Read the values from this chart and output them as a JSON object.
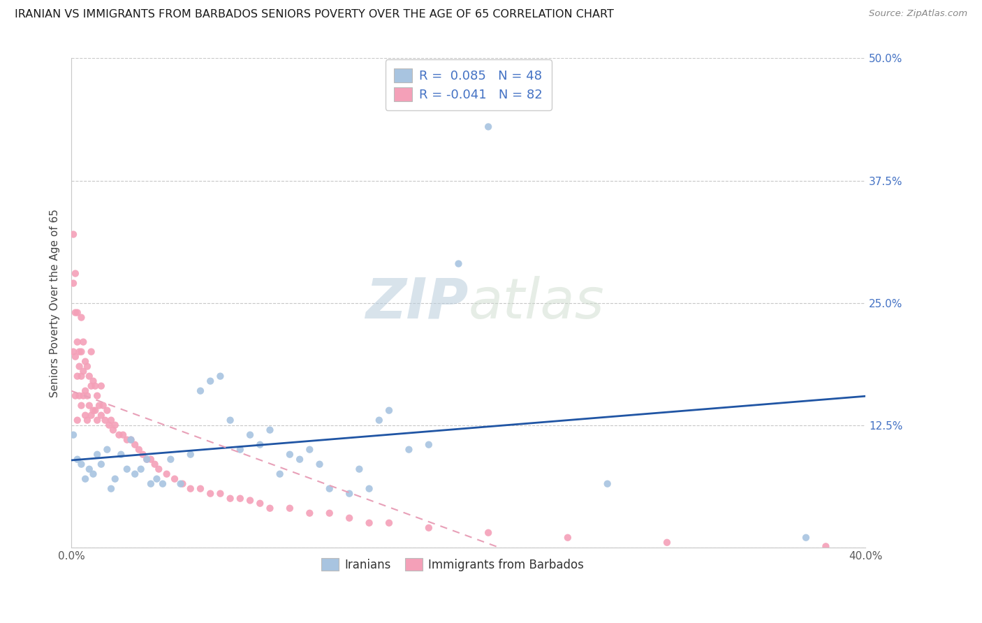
{
  "title": "IRANIAN VS IMMIGRANTS FROM BARBADOS SENIORS POVERTY OVER THE AGE OF 65 CORRELATION CHART",
  "source": "Source: ZipAtlas.com",
  "ylabel": "Seniors Poverty Over the Age of 65",
  "xlim": [
    0.0,
    0.4
  ],
  "ylim": [
    0.0,
    0.5
  ],
  "xticks": [
    0.0,
    0.1,
    0.2,
    0.3,
    0.4
  ],
  "xticklabels": [
    "0.0%",
    "",
    "",
    "",
    "40.0%"
  ],
  "yticks": [
    0.0,
    0.125,
    0.25,
    0.375,
    0.5
  ],
  "right_yticklabels": [
    "",
    "12.5%",
    "25.0%",
    "37.5%",
    "50.0%"
  ],
  "right_ytick_color": "#4472c4",
  "grid_color": "#c8c8c8",
  "background_color": "#ffffff",
  "watermark_zip": "ZIP",
  "watermark_atlas": "atlas",
  "legend_R1": "0.085",
  "legend_N1": "48",
  "legend_R2": "-0.041",
  "legend_N2": "82",
  "iranians_color": "#a8c4e0",
  "barbados_color": "#f4a0b8",
  "line1_color": "#2055a4",
  "line2_color": "#e8a0b8",
  "iranians_x": [
    0.001,
    0.003,
    0.005,
    0.007,
    0.009,
    0.011,
    0.013,
    0.015,
    0.018,
    0.02,
    0.022,
    0.025,
    0.028,
    0.03,
    0.032,
    0.035,
    0.038,
    0.04,
    0.043,
    0.046,
    0.05,
    0.055,
    0.06,
    0.065,
    0.07,
    0.075,
    0.08,
    0.085,
    0.09,
    0.095,
    0.1,
    0.105,
    0.11,
    0.115,
    0.12,
    0.125,
    0.13,
    0.14,
    0.145,
    0.15,
    0.155,
    0.16,
    0.17,
    0.18,
    0.195,
    0.21,
    0.27,
    0.37
  ],
  "iranians_y": [
    0.115,
    0.09,
    0.085,
    0.07,
    0.08,
    0.075,
    0.095,
    0.085,
    0.1,
    0.06,
    0.07,
    0.095,
    0.08,
    0.11,
    0.075,
    0.08,
    0.09,
    0.065,
    0.07,
    0.065,
    0.09,
    0.065,
    0.095,
    0.16,
    0.17,
    0.175,
    0.13,
    0.1,
    0.115,
    0.105,
    0.12,
    0.075,
    0.095,
    0.09,
    0.1,
    0.085,
    0.06,
    0.055,
    0.08,
    0.06,
    0.13,
    0.14,
    0.1,
    0.105,
    0.29,
    0.43,
    0.065,
    0.01
  ],
  "barbados_x": [
    0.001,
    0.001,
    0.001,
    0.002,
    0.002,
    0.002,
    0.002,
    0.003,
    0.003,
    0.003,
    0.003,
    0.004,
    0.004,
    0.004,
    0.005,
    0.005,
    0.005,
    0.005,
    0.006,
    0.006,
    0.006,
    0.007,
    0.007,
    0.007,
    0.008,
    0.008,
    0.008,
    0.009,
    0.009,
    0.01,
    0.01,
    0.01,
    0.011,
    0.011,
    0.012,
    0.012,
    0.013,
    0.013,
    0.014,
    0.015,
    0.015,
    0.016,
    0.017,
    0.018,
    0.019,
    0.02,
    0.021,
    0.022,
    0.024,
    0.026,
    0.028,
    0.03,
    0.032,
    0.034,
    0.036,
    0.038,
    0.04,
    0.042,
    0.044,
    0.048,
    0.052,
    0.056,
    0.06,
    0.065,
    0.07,
    0.075,
    0.08,
    0.085,
    0.09,
    0.095,
    0.1,
    0.11,
    0.12,
    0.13,
    0.14,
    0.15,
    0.16,
    0.18,
    0.21,
    0.25,
    0.3,
    0.38
  ],
  "barbados_y": [
    0.32,
    0.27,
    0.2,
    0.28,
    0.24,
    0.195,
    0.155,
    0.24,
    0.21,
    0.175,
    0.13,
    0.2,
    0.185,
    0.155,
    0.235,
    0.2,
    0.175,
    0.145,
    0.21,
    0.18,
    0.155,
    0.19,
    0.16,
    0.135,
    0.185,
    0.155,
    0.13,
    0.175,
    0.145,
    0.2,
    0.165,
    0.135,
    0.17,
    0.14,
    0.165,
    0.14,
    0.155,
    0.13,
    0.145,
    0.165,
    0.135,
    0.145,
    0.13,
    0.14,
    0.125,
    0.13,
    0.12,
    0.125,
    0.115,
    0.115,
    0.11,
    0.11,
    0.105,
    0.1,
    0.095,
    0.09,
    0.09,
    0.085,
    0.08,
    0.075,
    0.07,
    0.065,
    0.06,
    0.06,
    0.055,
    0.055,
    0.05,
    0.05,
    0.048,
    0.045,
    0.04,
    0.04,
    0.035,
    0.035,
    0.03,
    0.025,
    0.025,
    0.02,
    0.015,
    0.01,
    0.005,
    0.001
  ]
}
